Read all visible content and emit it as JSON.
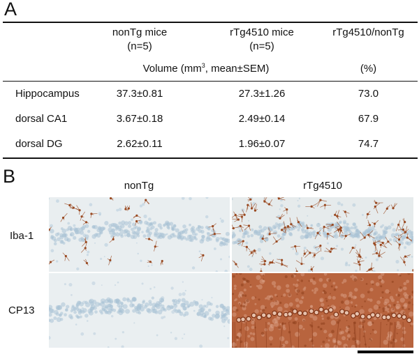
{
  "panel_a": {
    "letter": "A",
    "headers": {
      "col1_line1": "nonTg mice",
      "col1_line2": "(n=5)",
      "col2_line1": "rTg4510 mice",
      "col2_line2": "(n=5)",
      "col3_line1": "rTg4510/nonTg",
      "units_main_pre": "Volume (mm",
      "units_main_sup": "3",
      "units_main_post": ", mean±SEM)",
      "units_pct": "(%)"
    },
    "rows": [
      {
        "label": "Hippocampus",
        "nontg": "37.3±0.81",
        "rtg": "27.3±1.26",
        "ratio": "73.0"
      },
      {
        "label": "dorsal CA1",
        "nontg": "3.67±0.18",
        "rtg": "2.49±0.14",
        "ratio": "67.9"
      },
      {
        "label": "dorsal DG",
        "nontg": "2.62±0.11",
        "rtg": "1.96±0.07",
        "ratio": "74.7"
      }
    ]
  },
  "panel_b": {
    "letter": "B",
    "columns": [
      "nonTg",
      "rTg4510"
    ],
    "rows": [
      "Iba-1",
      "CP13"
    ]
  },
  "colors": {
    "background_light": "#e9eef0",
    "nuclei_blue": "#a9c3d6",
    "stain_brown": "#9a4a22",
    "stain_dense": "#b8643e"
  }
}
